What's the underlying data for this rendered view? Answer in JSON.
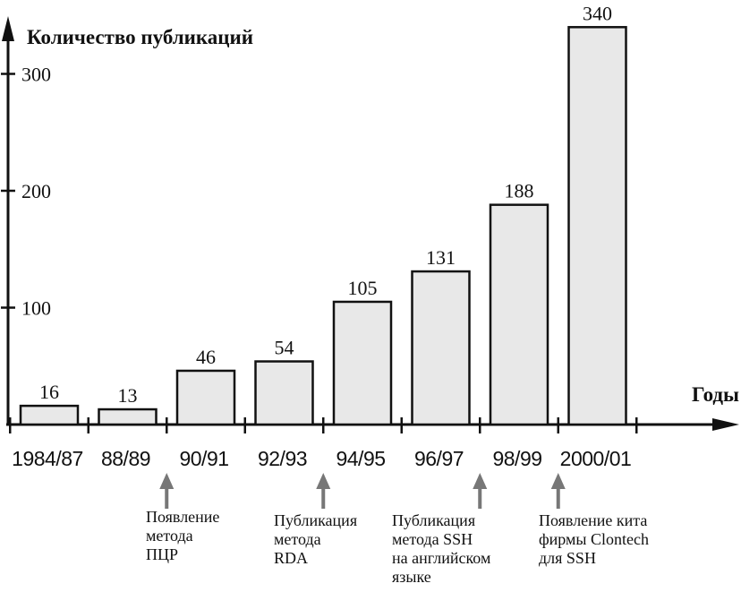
{
  "chart_data": {
    "type": "bar",
    "ylabel": "Количество публикаций",
    "xlabel": "Годы",
    "categories": [
      "1984/87",
      "88/89",
      "90/91",
      "92/93",
      "94/95",
      "96/97",
      "98/99",
      "2000/01"
    ],
    "values": [
      16,
      13,
      46,
      54,
      105,
      131,
      188,
      340
    ],
    "yticks": [
      100,
      200,
      300
    ],
    "ylim": [
      0,
      340
    ],
    "grid": false,
    "bar_color": "#e8e8e8",
    "arrow_color": "#777777",
    "annotations": [
      {
        "after_category": "88/89",
        "lines": [
          "Появление",
          "метода",
          "ПЦР"
        ]
      },
      {
        "after_category": "92/93",
        "lines": [
          "Публикация",
          "метода",
          "RDA"
        ]
      },
      {
        "after_category": "96/97",
        "lines": [
          "Публикация",
          "метода SSH",
          "на английском",
          "языке"
        ]
      },
      {
        "after_category": "98/99",
        "lines": [
          "Появление кита",
          "фирмы Clontech",
          "для SSH"
        ]
      }
    ]
  }
}
